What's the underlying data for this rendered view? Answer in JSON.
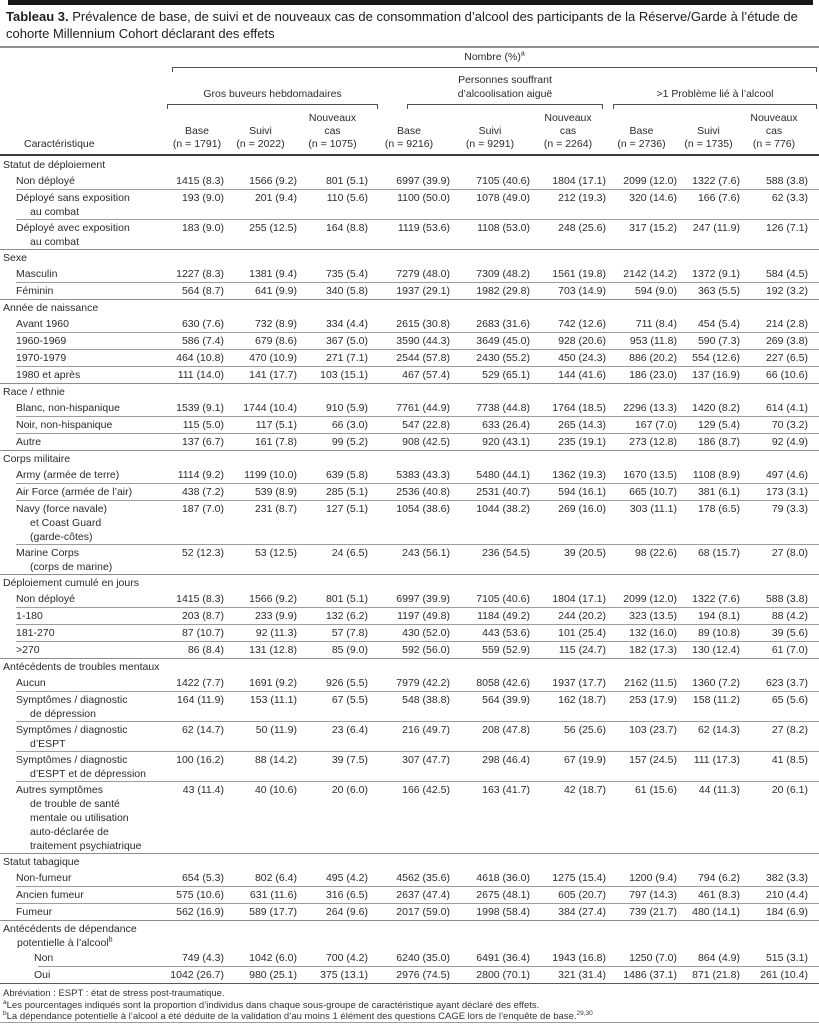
{
  "title": {
    "label": "Tableau 3.",
    "text": "Prévalence de base, de suivi et de nouveaux cas de consommation d’alcool des participants de la Réserve/Garde à l’étude de cohorte Millennium Cohort déclarant des effets"
  },
  "header": {
    "nombre_label": "Nombre (%)",
    "nombre_sup": "a",
    "caracteristique": "Caractéristique",
    "groups": [
      {
        "label_lines": [
          "Gros buveurs hebdomadaires"
        ],
        "columns": [
          [
            "",
            "Base",
            "(n = 1791)"
          ],
          [
            "",
            "Suivi",
            "(n = 2022)"
          ],
          [
            "Nouveaux",
            "cas",
            "(n = 1075)"
          ]
        ]
      },
      {
        "label_lines": [
          "Personnes souffrant",
          "d’alcoolisation aiguë"
        ],
        "columns": [
          [
            "",
            "Base",
            "(n = 9216)"
          ],
          [
            "",
            "Suivi",
            "(n = 9291)"
          ],
          [
            "Nouveaux",
            "cas",
            "(n = 2264)"
          ]
        ]
      },
      {
        "label_lines": [
          ">1 Problème lié à l’alcool"
        ],
        "columns": [
          [
            "",
            "Base",
            "(n = 2736)"
          ],
          [
            "",
            "Suivi",
            "(n = 1735)"
          ],
          [
            "Nouveaux",
            "cas",
            "(n = 776)"
          ]
        ]
      }
    ]
  },
  "sections": [
    {
      "header_lines": [
        "Statut de déploiement"
      ],
      "header_sup": "",
      "deep": false,
      "rows": [
        {
          "label_lines": [
            "Non déployé"
          ],
          "values": [
            "1415 (8.3)",
            "1566 (9.2)",
            "801 (5.1)",
            "6997 (39.9)",
            "7105 (40.6)",
            "1804 (17.1)",
            "2099 (12.0)",
            "1322 (7.6)",
            "588 (3.8)"
          ]
        },
        {
          "label_lines": [
            "Déployé sans exposition",
            "au combat"
          ],
          "values": [
            "193 (9.0)",
            "201 (9.4)",
            "110 (5.6)",
            "1100 (50.0)",
            "1078 (49.0)",
            "212 (19.3)",
            "320 (14.6)",
            "166 (7.6)",
            "62 (3.3)"
          ]
        },
        {
          "label_lines": [
            "Déployé avec exposition",
            "au combat"
          ],
          "values": [
            "183 (9.0)",
            "255 (12.5)",
            "164 (8.8)",
            "1119 (53.6)",
            "1108 (53.0)",
            "248 (25.6)",
            "317 (15.2)",
            "247 (11.9)",
            "126 (7.1)"
          ]
        }
      ]
    },
    {
      "header_lines": [
        "Sexe"
      ],
      "header_sup": "",
      "deep": false,
      "rows": [
        {
          "label_lines": [
            "Masculin"
          ],
          "values": [
            "1227 (8.3)",
            "1381 (9.4)",
            "735 (5.4)",
            "7279 (48.0)",
            "7309 (48.2)",
            "1561 (19.8)",
            "2142 (14.2)",
            "1372 (9.1)",
            "584 (4.5)"
          ]
        },
        {
          "label_lines": [
            "Féminin"
          ],
          "values": [
            "564 (8.7)",
            "641 (9.9)",
            "340 (5.8)",
            "1937 (29.1)",
            "1982 (29.8)",
            "703 (14.9)",
            "594 (9.0)",
            "363 (5.5)",
            "192 (3.2)"
          ]
        }
      ]
    },
    {
      "header_lines": [
        "Année de naissance"
      ],
      "header_sup": "",
      "deep": false,
      "rows": [
        {
          "label_lines": [
            "Avant 1960"
          ],
          "values": [
            "630 (7.6)",
            "732 (8.9)",
            "334 (4.4)",
            "2615 (30.8)",
            "2683 (31.6)",
            "742 (12.6)",
            "711 (8.4)",
            "454 (5.4)",
            "214 (2.8)"
          ]
        },
        {
          "label_lines": [
            "1960-1969"
          ],
          "values": [
            "586 (7.4)",
            "679 (8.6)",
            "367 (5.0)",
            "3590 (44.3)",
            "3649 (45.0)",
            "928 (20.6)",
            "953 (11.8)",
            "590 (7.3)",
            "269 (3.8)"
          ]
        },
        {
          "label_lines": [
            "1970-1979"
          ],
          "values": [
            "464 (10.8)",
            "470 (10.9)",
            "271 (7.1)",
            "2544 (57.8)",
            "2430 (55.2)",
            "450 (24.3)",
            "886 (20.2)",
            "554 (12.6)",
            "227 (6.5)"
          ]
        },
        {
          "label_lines": [
            "1980 et après"
          ],
          "values": [
            "111 (14.0)",
            "141 (17.7)",
            "103 (15.1)",
            "467 (57.4)",
            "529 (65.1)",
            "144 (41.6)",
            "186 (23.0)",
            "137 (16.9)",
            "66 (10.6)"
          ]
        }
      ]
    },
    {
      "header_lines": [
        "Race / ethnie"
      ],
      "header_sup": "",
      "deep": false,
      "rows": [
        {
          "label_lines": [
            "Blanc, non-hispanique"
          ],
          "values": [
            "1539 (9.1)",
            "1744 (10.4)",
            "910 (5.9)",
            "7761 (44.9)",
            "7738 (44.8)",
            "1764 (18.5)",
            "2296 (13.3)",
            "1420 (8.2)",
            "614 (4.1)"
          ]
        },
        {
          "label_lines": [
            "Noir, non-hispanique"
          ],
          "values": [
            "115 (5.0)",
            "117 (5.1)",
            "66 (3.0)",
            "547 (22.8)",
            "633 (26.4)",
            "265 (14.3)",
            "167 (7.0)",
            "129 (5.4)",
            "70 (3.2)"
          ]
        },
        {
          "label_lines": [
            "Autre"
          ],
          "values": [
            "137 (6.7)",
            "161 (7.8)",
            "99 (5.2)",
            "908 (42.5)",
            "920 (43.1)",
            "235 (19.1)",
            "273 (12.8)",
            "186 (8.7)",
            "92 (4.9)"
          ]
        }
      ]
    },
    {
      "header_lines": [
        "Corps militaire"
      ],
      "header_sup": "",
      "deep": false,
      "rows": [
        {
          "label_lines": [
            "Army (armée de terre)"
          ],
          "values": [
            "1114 (9.2)",
            "1199 (10.0)",
            "639 (5.8)",
            "5383 (43.3)",
            "5480 (44.1)",
            "1362 (19.3)",
            "1670 (13.5)",
            "1108 (8.9)",
            "497 (4.6)"
          ]
        },
        {
          "label_lines": [
            "Air Force (armée de l’air)"
          ],
          "values": [
            "438 (7.2)",
            "539 (8.9)",
            "285 (5.1)",
            "2536 (40.8)",
            "2531 (40.7)",
            "594 (16.1)",
            "665 (10.7)",
            "381 (6.1)",
            "173 (3.1)"
          ]
        },
        {
          "label_lines": [
            "Navy (force navale)",
            "et Coast Guard",
            "(garde-côtes)"
          ],
          "values": [
            "187 (7.0)",
            "231 (8.7)",
            "127 (5.1)",
            "1054 (38.6)",
            "1044 (38.2)",
            "269 (16.0)",
            "303 (11.1)",
            "178 (6.5)",
            "79 (3.3)"
          ]
        },
        {
          "label_lines": [
            "Marine Corps",
            "(corps de marine)"
          ],
          "values": [
            "52 (12.3)",
            "53 (12.5)",
            "24 (6.5)",
            "243 (56.1)",
            "236 (54.5)",
            "39 (20.5)",
            "98 (22.6)",
            "68 (15.7)",
            "27 (8.0)"
          ]
        }
      ]
    },
    {
      "header_lines": [
        "Déploiement cumulé en jours"
      ],
      "header_sup": "",
      "deep": false,
      "rows": [
        {
          "label_lines": [
            "Non déployé"
          ],
          "values": [
            "1415 (8.3)",
            "1566 (9.2)",
            "801 (5.1)",
            "6997 (39.9)",
            "7105 (40.6)",
            "1804 (17.1)",
            "2099 (12.0)",
            "1322 (7.6)",
            "588 (3.8)"
          ]
        },
        {
          "label_lines": [
            "1-180"
          ],
          "values": [
            "203 (8.7)",
            "233 (9.9)",
            "132 (6.2)",
            "1197 (49.8)",
            "1184 (49.2)",
            "244 (20.2)",
            "323 (13.5)",
            "194 (8.1)",
            "88 (4.2)"
          ]
        },
        {
          "label_lines": [
            "181-270"
          ],
          "values": [
            "87 (10.7)",
            "92 (11.3)",
            "57 (7.8)",
            "430 (52.0)",
            "443 (53.6)",
            "101 (25.4)",
            "132 (16.0)",
            "89 (10.8)",
            "39 (5.6)"
          ]
        },
        {
          "label_lines": [
            ">270"
          ],
          "values": [
            "86 (8.4)",
            "131 (12.8)",
            "85 (9.0)",
            "592 (56.0)",
            "559 (52.9)",
            "115 (24.7)",
            "182 (17.3)",
            "130 (12.4)",
            "61 (7.0)"
          ]
        }
      ]
    },
    {
      "header_lines": [
        "Antécédents de troubles mentaux"
      ],
      "header_sup": "",
      "deep": false,
      "rows": [
        {
          "label_lines": [
            "Aucun"
          ],
          "values": [
            "1422 (7.7)",
            "1691 (9.2)",
            "926 (5.5)",
            "7979 (42.2)",
            "8058 (42.6)",
            "1937 (17.7)",
            "2162 (11.5)",
            "1360 (7.2)",
            "623 (3.7)"
          ]
        },
        {
          "label_lines": [
            "Symptômes / diagnostic",
            "de dépression"
          ],
          "values": [
            "164 (11.9)",
            "153 (11.1)",
            "67 (5.5)",
            "548 (38.8)",
            "564 (39.9)",
            "162 (18.7)",
            "253 (17.9)",
            "158 (11.2)",
            "65 (5.6)"
          ]
        },
        {
          "label_lines": [
            "Symptômes / diagnostic",
            "d’ESPT"
          ],
          "values": [
            "62 (14.7)",
            "50 (11.9)",
            "23 (6.4)",
            "216 (49.7)",
            "208 (47.8)",
            "56 (25.6)",
            "103 (23.7)",
            "62 (14.3)",
            "27 (8.2)"
          ]
        },
        {
          "label_lines": [
            "Symptômes / diagnostic",
            "d’ESPT et de dépression"
          ],
          "values": [
            "100 (16.2)",
            "88 (14.2)",
            "39 (7.5)",
            "307 (47.7)",
            "298 (46.4)",
            "67 (19.9)",
            "157 (24.5)",
            "111 (17.3)",
            "41 (8.5)"
          ]
        },
        {
          "label_lines": [
            "Autres symptômes",
            "de trouble de santé",
            "mentale ou utilisation",
            "auto-déclarée de",
            "traitement psychiatrique"
          ],
          "values": [
            "43 (11.4)",
            "40 (10.6)",
            "20 (6.0)",
            "166 (42.5)",
            "163 (41.7)",
            "42 (18.7)",
            "61 (15.6)",
            "44 (11.3)",
            "20 (6.1)"
          ]
        }
      ]
    },
    {
      "header_lines": [
        "Statut tabagique"
      ],
      "header_sup": "",
      "deep": false,
      "rows": [
        {
          "label_lines": [
            "Non-fumeur"
          ],
          "values": [
            "654 (5.3)",
            "802 (6.4)",
            "495 (4.2)",
            "4562 (35.6)",
            "4618 (36.0)",
            "1275 (15.4)",
            "1200 (9.4)",
            "794 (6.2)",
            "382 (3.3)"
          ]
        },
        {
          "label_lines": [
            "Ancien fumeur"
          ],
          "values": [
            "575 (10.6)",
            "631 (11.6)",
            "316 (6.5)",
            "2637 (47.4)",
            "2675 (48.1)",
            "605 (20.7)",
            "797 (14.3)",
            "461 (8.3)",
            "210 (4.4)"
          ]
        },
        {
          "label_lines": [
            "Fumeur"
          ],
          "values": [
            "562 (16.9)",
            "589 (17.7)",
            "264 (9.6)",
            "2017 (59.0)",
            "1998 (58.4)",
            "384 (27.4)",
            "739 (21.7)",
            "480 (14.1)",
            "184 (6.9)"
          ]
        }
      ]
    },
    {
      "header_lines": [
        "Antécédents de dépendance",
        "potentielle à l’alcool"
      ],
      "header_sup": "b",
      "deep": true,
      "rows": [
        {
          "label_lines": [
            "Non"
          ],
          "values": [
            "749 (4.3)",
            "1042 (6.0)",
            "700 (4.2)",
            "6240 (35.0)",
            "6491 (36.4)",
            "1943 (16.8)",
            "1250 (7.0)",
            "864 (4.9)",
            "515 (3.1)"
          ]
        },
        {
          "label_lines": [
            "Oui"
          ],
          "values": [
            "1042 (26.7)",
            "980 (25.1)",
            "375 (13.1)",
            "2976 (74.5)",
            "2800 (70.1)",
            "321 (31.4)",
            "1486 (37.1)",
            "871 (21.8)",
            "261 (10.4)"
          ]
        }
      ]
    }
  ],
  "footnotes": [
    {
      "sup": "",
      "text": "Abréviation : ESPT : état de stress post-traumatique.",
      "tail_sup": ""
    },
    {
      "sup": "a",
      "text": "Les pourcentages indiqués sont la proportion d’individus dans chaque sous-groupe de caractéristique ayant déclaré des effets.",
      "tail_sup": ""
    },
    {
      "sup": "b",
      "text": "La dépendance potentielle à l’alcool a été déduite de la validation d’au moins 1 élément des questions CAGE lors de l’enquête de base.",
      "tail_sup": "29,30"
    }
  ]
}
